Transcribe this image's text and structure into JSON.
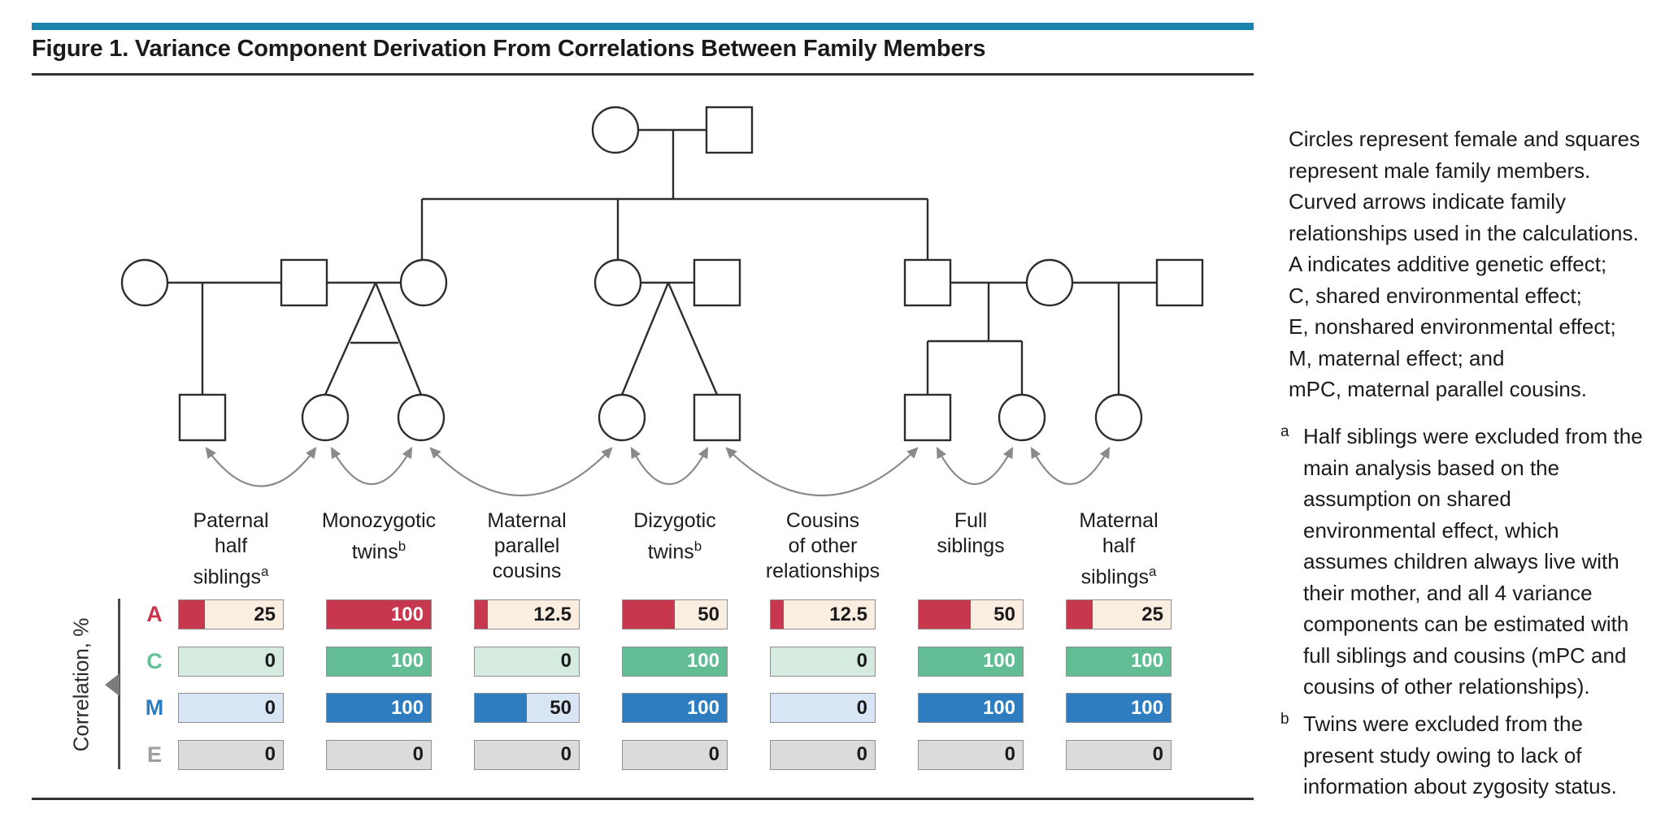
{
  "figure": {
    "title": "Figure 1. Variance Component Derivation From Correlations Between Family Members",
    "accent_color": "#1B85AD"
  },
  "axis": {
    "label": "Correlation, %"
  },
  "table": {
    "rows": [
      {
        "key": "A",
        "fill_color": "#C7374D",
        "light_color": "#F9EEDF",
        "label_color": "#C9344A"
      },
      {
        "key": "C",
        "fill_color": "#62BD95",
        "light_color": "#D6EBDF",
        "label_color": "#62C296"
      },
      {
        "key": "M",
        "fill_color": "#2E7DC1",
        "light_color": "#D7E5F4",
        "label_color": "#2C7CC2"
      },
      {
        "key": "E",
        "fill_color": "#BFBFBF",
        "light_color": "#DBDBDB",
        "label_color": "#9E9E9E"
      }
    ],
    "columns": [
      {
        "id": "paternal-half-siblings",
        "lines": [
          "Paternal",
          "half",
          "siblings"
        ],
        "sup": "a"
      },
      {
        "id": "monozygotic-twins",
        "lines": [
          "Monozygotic",
          "twins"
        ],
        "sup": "b"
      },
      {
        "id": "maternal-parallel-cousins",
        "lines": [
          "Maternal",
          "parallel",
          "cousins"
        ]
      },
      {
        "id": "dizygotic-twins",
        "lines": [
          "Dizygotic",
          "twins"
        ],
        "sup": "b"
      },
      {
        "id": "cousins-other-relationships",
        "lines": [
          "Cousins",
          "of other",
          "relationships"
        ]
      },
      {
        "id": "full-siblings",
        "lines": [
          "Full",
          "siblings"
        ]
      },
      {
        "id": "maternal-half-siblings",
        "lines": [
          "Maternal",
          "half",
          "siblings"
        ],
        "sup": "a"
      }
    ]
  },
  "chart_data": {
    "type": "bar",
    "orientation": "horizontal",
    "unit": "percent",
    "axis_label": "Correlation, %",
    "xlim": [
      0,
      100
    ],
    "categories": [
      "Paternal half siblings",
      "Monozygotic twins",
      "Maternal parallel cousins",
      "Dizygotic twins",
      "Cousins of other relationships",
      "Full siblings",
      "Maternal half siblings"
    ],
    "series": [
      {
        "name": "A",
        "meaning": "additive genetic effect",
        "values": [
          25,
          100,
          12.5,
          50,
          12.5,
          50,
          25
        ]
      },
      {
        "name": "C",
        "meaning": "shared environmental effect",
        "values": [
          0,
          100,
          0,
          100,
          0,
          100,
          100
        ]
      },
      {
        "name": "M",
        "meaning": "maternal effect",
        "values": [
          0,
          100,
          50,
          100,
          0,
          100,
          100
        ]
      },
      {
        "name": "E",
        "meaning": "nonshared environmental effect",
        "values": [
          0,
          0,
          0,
          0,
          0,
          0,
          0
        ]
      }
    ]
  },
  "caption": {
    "lines": [
      "Circles represent female and squares",
      "represent male family members.",
      "Curved arrows indicate family",
      "relationships used in the calculations.",
      "A indicates additive genetic effect;",
      "C, shared environmental effect;",
      "E, nonshared environmental effect;",
      "M, maternal effect; and",
      "mPC, maternal parallel cousins."
    ]
  },
  "footnotes": [
    {
      "marker": "a",
      "lines": [
        "Half siblings were excluded from the",
        "main analysis based on the",
        "assumption on shared",
        "environmental effect, which",
        "assumes children always live with",
        "their mother, and all 4 variance",
        "components can be estimated with",
        "full siblings and cousins (mPC and",
        "cousins of other relationships)."
      ]
    },
    {
      "marker": "b",
      "lines": [
        "Twins were excluded from the",
        "present study owing to lack of",
        "information about zygosity status."
      ]
    }
  ]
}
